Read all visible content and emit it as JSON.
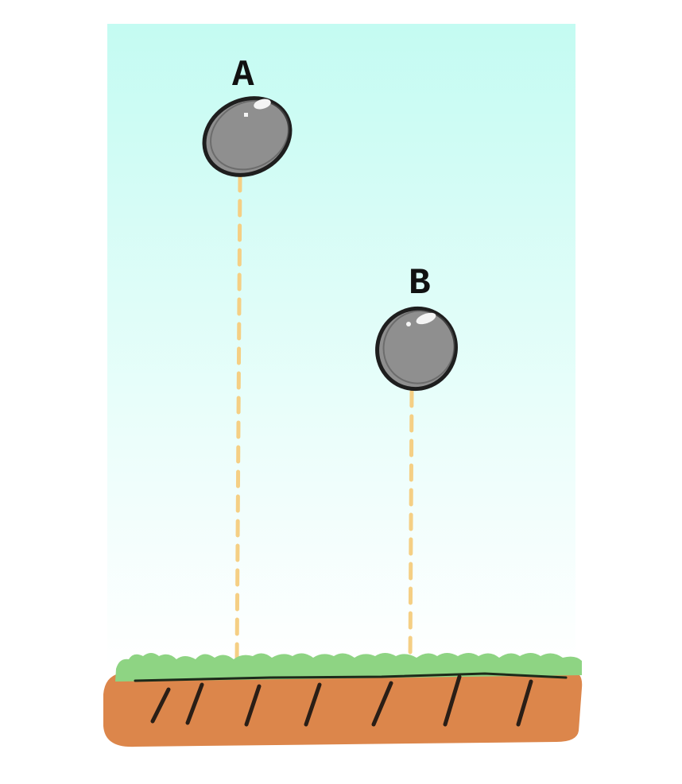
{
  "labels": {
    "a": "A",
    "b": "B"
  },
  "colors": {
    "sky_top": "#c4fbf2",
    "sky_bottom": "#ffffff",
    "stone_fill": "#8f8f8f",
    "stone_outline": "#1e1e1e",
    "dashed_line": "#f5cf84",
    "grass": "#8ed483",
    "soil": "#dc864b",
    "soil_marks": "#2a1e16"
  }
}
